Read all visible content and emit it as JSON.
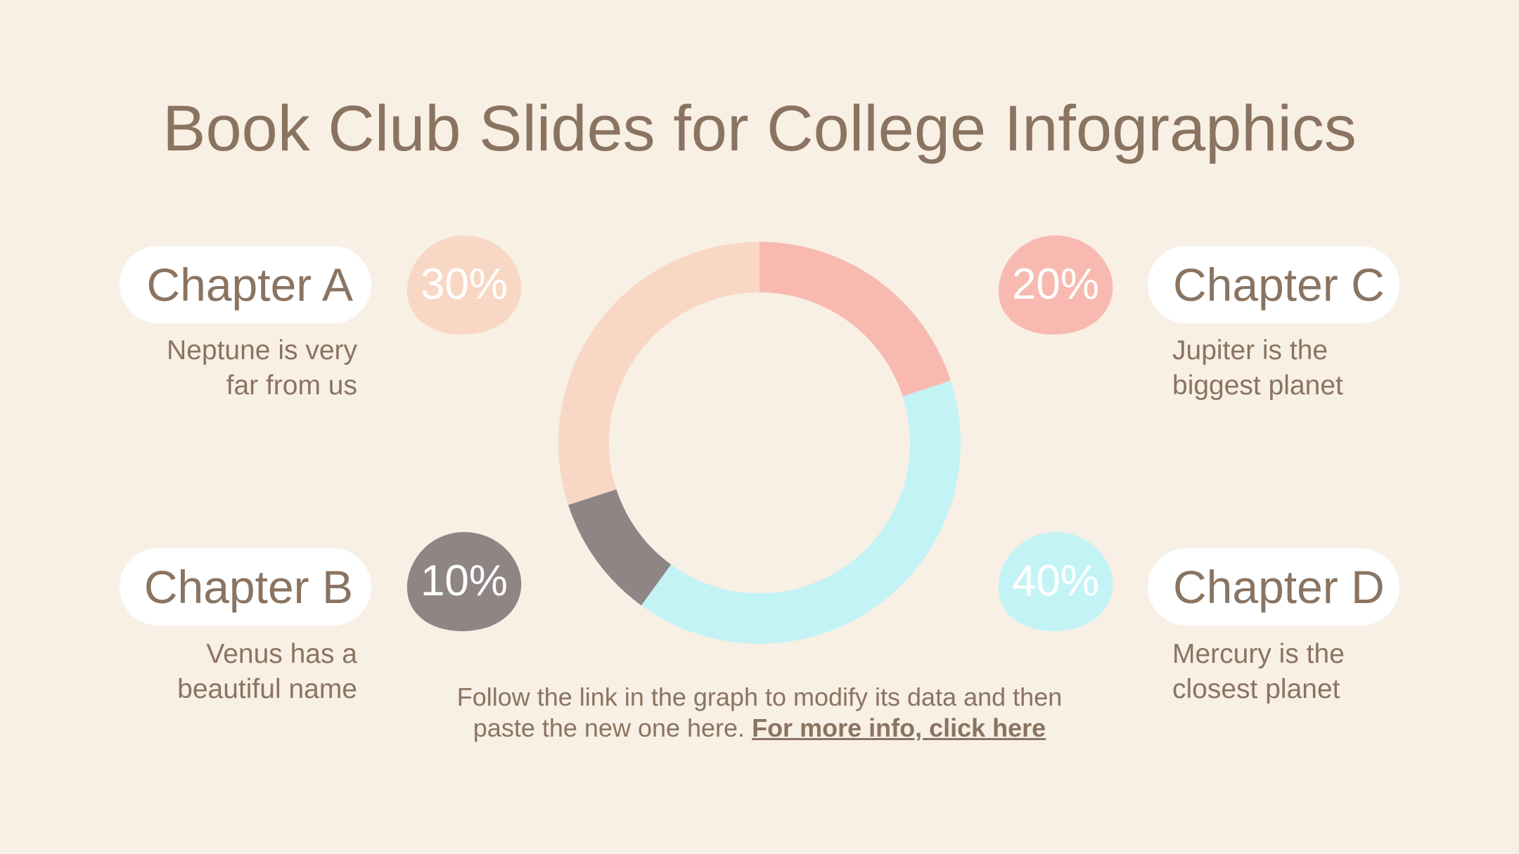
{
  "title": "Book Club Slides for College Infographics",
  "colors": {
    "background": "#f8f0e5",
    "text": "#8a7461",
    "chapter_a": "#f8d8c4",
    "chapter_b": "#908585",
    "chapter_c": "#f8bab0",
    "chapter_d": "#c4f3f6"
  },
  "chapters": {
    "a": {
      "name": "Chapter A",
      "percent": "30%",
      "desc1": "Neptune is very",
      "desc2": "far from us"
    },
    "b": {
      "name": "Chapter B",
      "percent": "10%",
      "desc1": "Venus has a",
      "desc2": "beautiful name"
    },
    "c": {
      "name": "Chapter C",
      "percent": "20%",
      "desc1": "Jupiter is the",
      "desc2": "biggest planet"
    },
    "d": {
      "name": "Chapter D",
      "percent": "40%",
      "desc1": "Mercury is the",
      "desc2": "closest planet"
    }
  },
  "footer": {
    "line1": "Follow the link in the graph to modify its data and then",
    "line2": "paste the new one here.",
    "link": "For more info, click here"
  },
  "chart_data": {
    "type": "pie",
    "style": "donut",
    "categories": [
      "Chapter C",
      "Chapter D",
      "Chapter B",
      "Chapter A"
    ],
    "values": [
      20,
      40,
      10,
      30
    ],
    "colors": [
      "#f8bab0",
      "#c4f3f6",
      "#908585",
      "#f8d8c4"
    ],
    "start": "top",
    "direction": "clockwise"
  }
}
